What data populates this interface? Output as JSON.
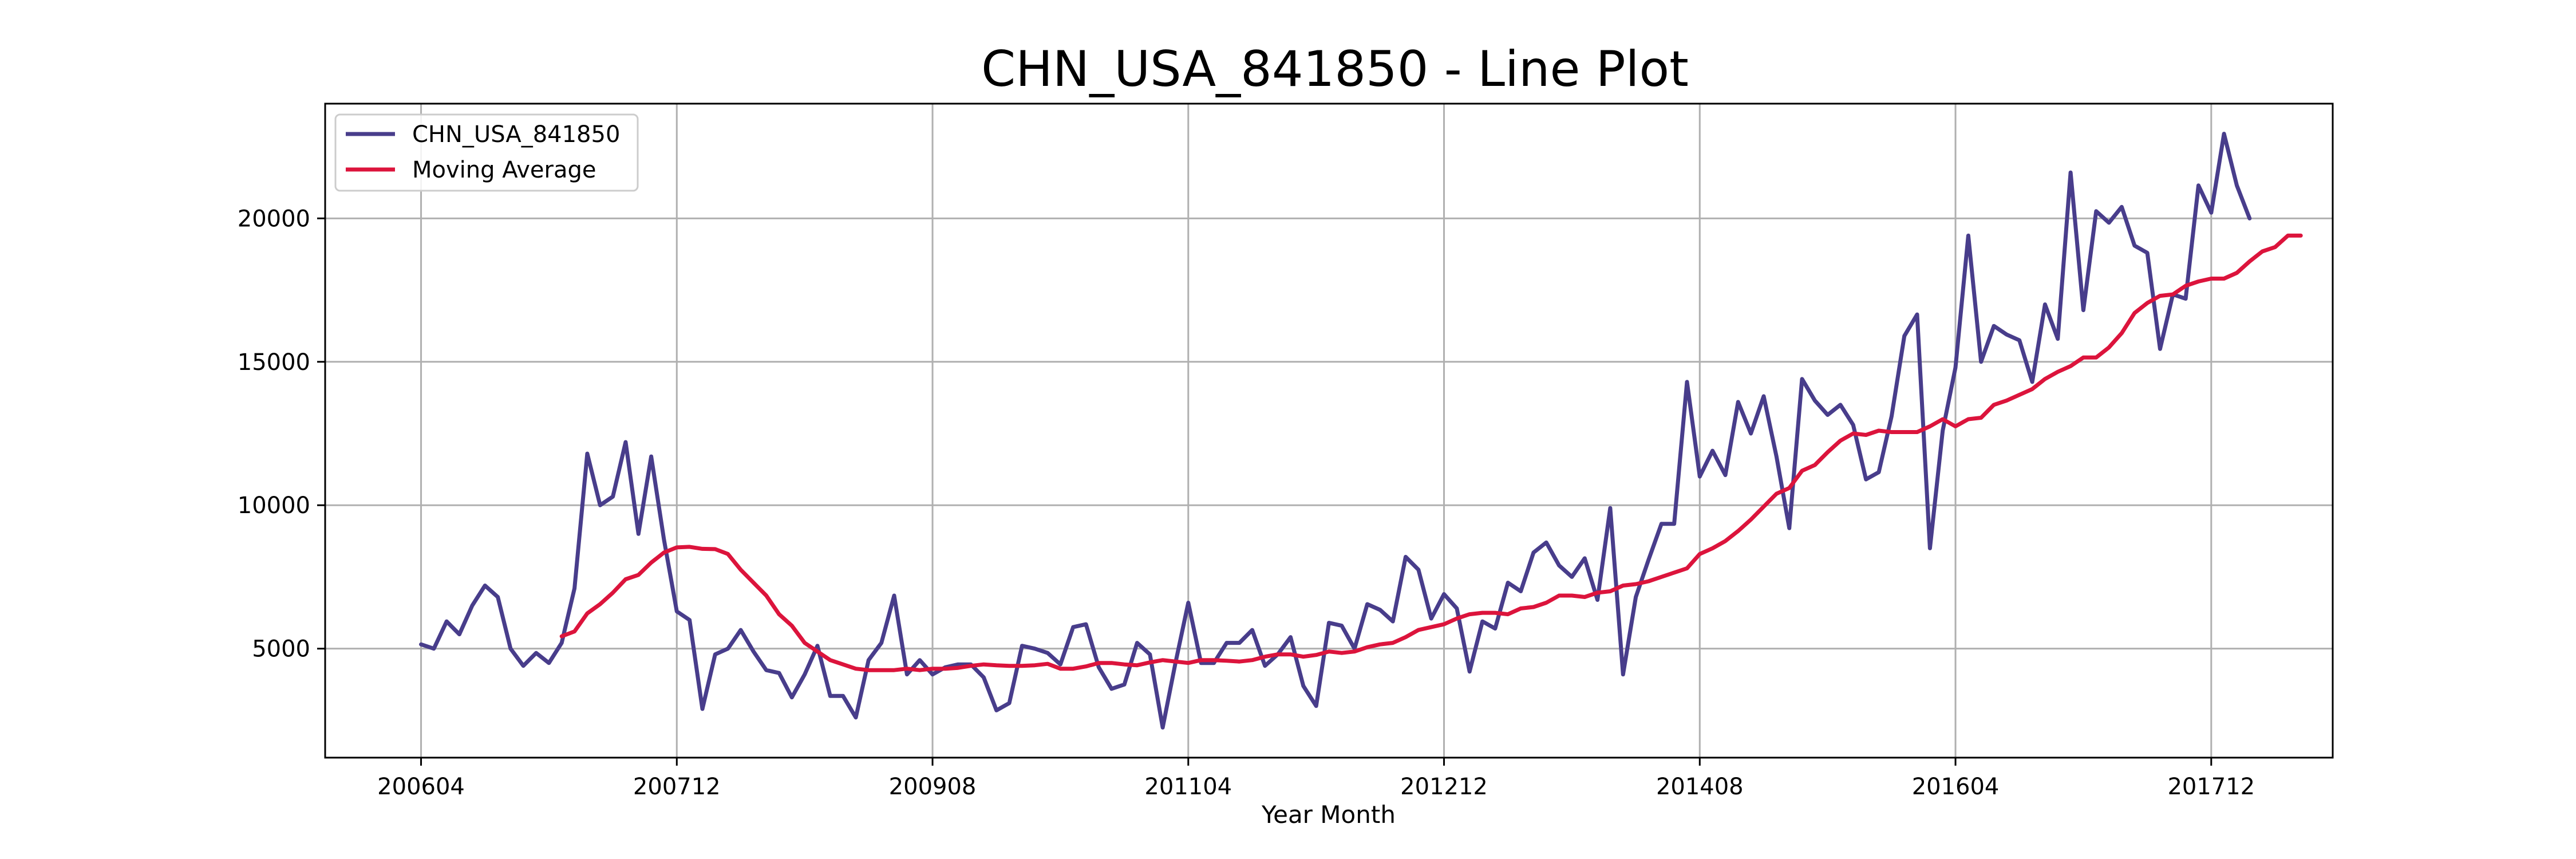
{
  "chart_data": {
    "type": "line",
    "title": "CHN_USA_841850 - Line Plot",
    "xlabel": "Year Month",
    "ylabel": "",
    "x_tick_labels": [
      "200604",
      "200712",
      "200908",
      "201104",
      "201212",
      "201408",
      "201604",
      "201712"
    ],
    "y_ticks": [
      5000,
      10000,
      15000,
      20000
    ],
    "xlim": [
      -7.5,
      149.5
    ],
    "ylim": [
      1200,
      24000
    ],
    "grid": true,
    "legend_position": "top-left",
    "x_start": "2006-04",
    "colors": {
      "series1": "#483d8b",
      "moving_average": "#dc143c"
    },
    "series": [
      {
        "name": "CHN_USA_841850",
        "values": [
          5150,
          5000,
          5950,
          5500,
          6500,
          7200,
          6800,
          5000,
          4400,
          4850,
          4500,
          5200,
          7100,
          11800,
          10000,
          10300,
          12200,
          9000,
          11700,
          8800,
          6300,
          6000,
          2900,
          4800,
          5000,
          5650,
          4900,
          4250,
          4150,
          3300,
          4100,
          5100,
          3350,
          3350,
          2600,
          4600,
          5200,
          6850,
          4100,
          4600,
          4100,
          4350,
          4450,
          4450,
          4000,
          2850,
          3100,
          5100,
          5000,
          4850,
          4450,
          5750,
          5850,
          4350,
          3600,
          3750,
          5200,
          4800,
          2250,
          4500,
          6600,
          4500,
          4500,
          5200,
          5200,
          5650,
          4400,
          4800,
          5400,
          3700,
          3000,
          5900,
          5800,
          5000,
          6550,
          6350,
          5950,
          8200,
          7750,
          6050,
          6900,
          6400,
          4200,
          5950,
          5700,
          7300,
          7000,
          8350,
          8700,
          7900,
          7500,
          8150,
          6700,
          9900,
          4100,
          6800,
          8100,
          9350,
          9350,
          14300,
          11000,
          11900,
          11050,
          13600,
          12500,
          13800,
          11700,
          9200,
          14400,
          13650,
          13150,
          13500,
          12800,
          10900,
          11150,
          13100,
          15900,
          16650,
          8500,
          12600,
          14800,
          19400,
          15000,
          16250,
          15950,
          15750,
          14300,
          17000,
          15800,
          21600,
          16800,
          20250,
          19850,
          20400,
          19050,
          18800,
          15450,
          17350,
          17200,
          21150,
          20200,
          22950,
          21150,
          20000
        ]
      },
      {
        "name": "Moving Average",
        "start_index": 11,
        "values": [
          5430,
          5600,
          6230,
          6550,
          6950,
          7420,
          7570,
          8000,
          8350,
          8530,
          8550,
          8480,
          8470,
          8300,
          7750,
          7300,
          6850,
          6200,
          5800,
          5200,
          4900,
          4600,
          4450,
          4300,
          4250,
          4250,
          4250,
          4300,
          4250,
          4300,
          4300,
          4330,
          4400,
          4450,
          4420,
          4400,
          4400,
          4420,
          4470,
          4300,
          4300,
          4380,
          4500,
          4500,
          4450,
          4420,
          4520,
          4600,
          4550,
          4500,
          4600,
          4600,
          4580,
          4550,
          4600,
          4720,
          4800,
          4800,
          4720,
          4780,
          4900,
          4850,
          4900,
          5050,
          5150,
          5200,
          5400,
          5650,
          5750,
          5850,
          6050,
          6200,
          6250,
          6250,
          6200,
          6400,
          6450,
          6600,
          6850,
          6850,
          6800,
          6950,
          7000,
          7200,
          7250,
          7350,
          7500,
          7650,
          7800,
          8300,
          8500,
          8750,
          9100,
          9500,
          9950,
          10400,
          10600,
          11200,
          11400,
          11850,
          12250,
          12500,
          12450,
          12600,
          12550,
          12550,
          12550,
          12750,
          13000,
          12750,
          13000,
          13050,
          13500,
          13650,
          13850,
          14050,
          14400,
          14650,
          14850,
          15150,
          15150,
          15500,
          16000,
          16700,
          17050,
          17300,
          17350,
          17650,
          17800,
          17900,
          17900,
          18100,
          18500,
          18850,
          19000,
          19400,
          19400
        ]
      }
    ]
  }
}
